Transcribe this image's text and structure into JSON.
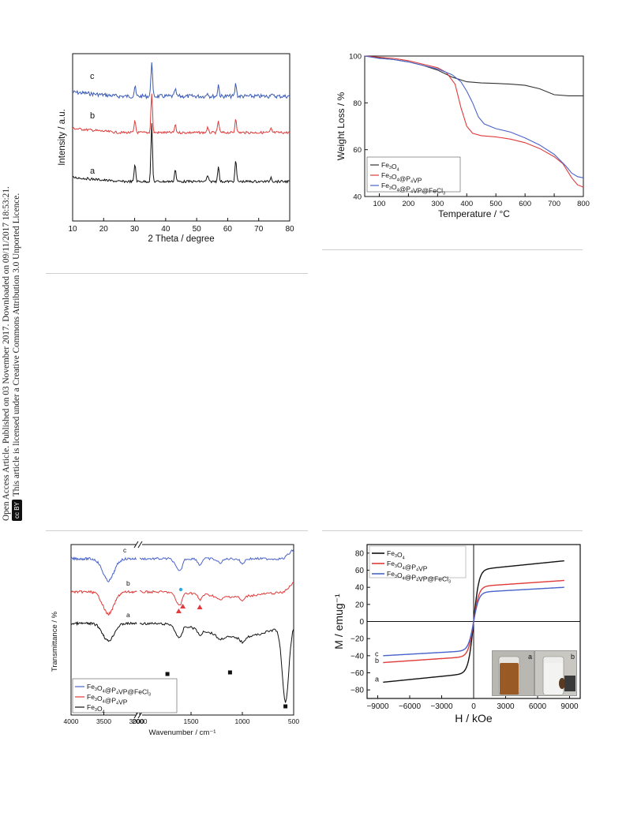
{
  "sidebar": {
    "line1": "Open Access Article. Published on 03 November 2017. Downloaded on 09/11/2017 18:53:21.",
    "line2": "This article is licensed under a Creative Commons Attribution 3.0 Unported Licence.",
    "badge_cc": "cc",
    "badge_by": "BY"
  },
  "chart_data": [
    {
      "type": "line",
      "panel": "xrd",
      "xlabel": "2 Theta / degree",
      "ylabel": "Intensity / a.u.",
      "xlim": [
        10,
        80
      ],
      "xticks": [
        10,
        20,
        30,
        40,
        50,
        60,
        70,
        80
      ],
      "peaks": [
        30.1,
        35.5,
        43.1,
        53.5,
        57.0,
        62.6,
        74.0
      ],
      "series": [
        {
          "name": "c",
          "color": "#3a5bb5",
          "peak_heights": [
            0.25,
            0.9,
            0.18,
            0.1,
            0.3,
            0.33,
            0.08
          ]
        },
        {
          "name": "b",
          "color": "#e03a3a",
          "peak_heights": [
            0.3,
            1.0,
            0.2,
            0.12,
            0.3,
            0.38,
            0.1
          ]
        },
        {
          "name": "a",
          "color": "#111111",
          "peak_heights": [
            0.45,
            1.45,
            0.32,
            0.15,
            0.4,
            0.55,
            0.12
          ]
        }
      ]
    },
    {
      "type": "line",
      "panel": "tga",
      "xlabel": "Temperature / °C",
      "ylabel": "Weight Loss / %",
      "xlim": [
        50,
        800
      ],
      "ylim": [
        40,
        100
      ],
      "xticks": [
        100,
        200,
        300,
        400,
        500,
        600,
        700,
        800
      ],
      "yticks": [
        40,
        60,
        80,
        100
      ],
      "legend_position": "bottom-left",
      "series": [
        {
          "name": "Fe3O4",
          "color": "#333333",
          "x": [
            50,
            100,
            150,
            200,
            250,
            300,
            350,
            400,
            450,
            500,
            550,
            600,
            650,
            700,
            750,
            800
          ],
          "y": [
            100,
            99.2,
            98.5,
            97.5,
            96,
            94,
            91,
            89,
            88.5,
            88.3,
            88,
            87.5,
            86,
            83.5,
            83,
            83
          ]
        },
        {
          "name": "Fe3O4@P4VP",
          "color": "#e03a3a",
          "x": [
            50,
            100,
            150,
            200,
            250,
            300,
            330,
            360,
            380,
            400,
            420,
            450,
            500,
            550,
            600,
            650,
            700,
            730,
            760,
            780,
            800
          ],
          "y": [
            100,
            99.5,
            99,
            98,
            96.5,
            95,
            93,
            88,
            78,
            70,
            67,
            66,
            65.5,
            64.5,
            63,
            60.5,
            57,
            54,
            48,
            45,
            44
          ]
        },
        {
          "name": "Fe3O4@P4VP@FeCl3",
          "color": "#4a63c9",
          "x": [
            50,
            100,
            150,
            200,
            250,
            300,
            350,
            380,
            400,
            420,
            440,
            460,
            500,
            550,
            600,
            650,
            700,
            740,
            760,
            780,
            800
          ],
          "y": [
            100,
            99,
            98.5,
            97.5,
            96,
            94.5,
            92,
            89,
            85,
            80,
            74,
            71,
            69,
            67.5,
            65,
            62,
            58,
            53,
            50,
            48.5,
            48
          ]
        }
      ]
    },
    {
      "type": "line",
      "panel": "ftir",
      "xlabel": "Wavenumber / cm⁻¹",
      "ylabel": "Transmittance / %",
      "xticks": [
        4000,
        3500,
        3000,
        2000,
        1500,
        1000,
        500
      ],
      "axis_break": [
        3000,
        2000
      ],
      "legend_position": "bottom-left",
      "series": [
        {
          "name": "Fe3O4@P4VP@FeCl3",
          "label": "c",
          "color": "#4a63c9"
        },
        {
          "name": "Fe3O4@P4VP",
          "label": "b",
          "color": "#e03a3a"
        },
        {
          "name": "Fe3O4",
          "label": "a",
          "color": "#111111"
        }
      ]
    },
    {
      "type": "line",
      "panel": "vsm",
      "xlabel": "H / kOe",
      "ylabel": "M / emug⁻¹",
      "xlim": [
        -10000,
        10000
      ],
      "ylim": [
        -90,
        90
      ],
      "xticks": [
        -9000,
        -6000,
        -3000,
        0,
        3000,
        6000,
        9000
      ],
      "yticks": [
        -80,
        -60,
        -40,
        -20,
        0,
        20,
        40,
        60,
        80
      ],
      "legend_position": "top-left",
      "series": [
        {
          "name": "Fe3O4",
          "label": "a",
          "color": "#111111",
          "ms": 71
        },
        {
          "name": "Fe3O4@P4VP",
          "label": "b",
          "color": "#e03a3a",
          "ms": 48
        },
        {
          "name": "Fe3O4@P4VP@FeCl3",
          "label": "c",
          "color": "#4a63c9",
          "ms": 40
        }
      ],
      "inset_labels": [
        "a",
        "b"
      ]
    }
  ]
}
